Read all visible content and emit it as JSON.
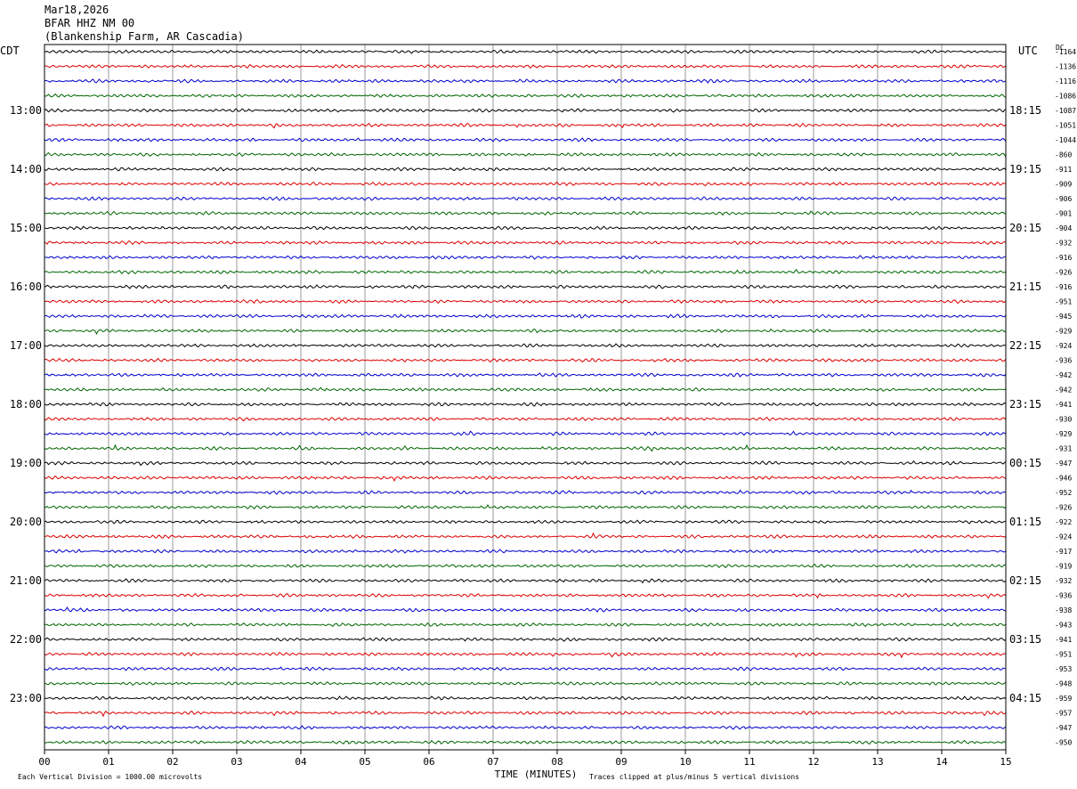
{
  "header": {
    "date": "Mar18,2026",
    "channel": "BFAR HHZ NM 00",
    "station": "(Blankenship Farm, AR Cascadia)"
  },
  "left_tz": "CDT",
  "right_tz": "UTC",
  "dc_label": "DC",
  "footer": {
    "scale_note": "Each Vertical Division = 1000.00 microvolts",
    "xlabel": "TIME (MINUTES)",
    "clip_note": "Traces clipped at plus/minus 5 vertical divisions"
  },
  "colors": {
    "trace_cycle": [
      "#000000",
      "#dd0000",
      "#0000cc",
      "#006600"
    ],
    "grid": "#999999",
    "frame": "#000000"
  },
  "chart_data": {
    "type": "line",
    "title": "",
    "xlabel": "TIME (MINUTES)",
    "xlim": [
      0,
      15
    ],
    "x_ticks": [
      "00",
      "01",
      "02",
      "03",
      "04",
      "05",
      "06",
      "07",
      "08",
      "09",
      "10",
      "11",
      "12",
      "13",
      "14",
      "15"
    ],
    "rows_per_hour": 4,
    "row_count": 48,
    "left_hour_labels": [
      "13:00",
      "14:00",
      "15:00",
      "16:00",
      "17:00",
      "18:00",
      "19:00",
      "20:00",
      "21:00",
      "22:00",
      "23:00"
    ],
    "right_hour_labels": [
      "18:15",
      "19:15",
      "20:15",
      "21:15",
      "22:15",
      "23:15",
      "00:15",
      "01:15",
      "02:15",
      "03:15",
      "04:15"
    ],
    "hour_label_first_row": 4,
    "dc_offsets": [
      -1164,
      -1136,
      -1116,
      -1086,
      -1087,
      -1051,
      -1044,
      -860,
      -911,
      -909,
      -906,
      -901,
      -904,
      -932,
      -916,
      -926,
      -916,
      -951,
      -945,
      -929,
      -924,
      -936,
      -942,
      -942,
      -941,
      -930,
      -929,
      -931,
      -947,
      -946,
      -952,
      -926,
      -922,
      -924,
      -917,
      -919,
      -932,
      -936,
      -938,
      -943,
      -941,
      -951,
      -953,
      -948,
      -959,
      -957,
      -947,
      -950
    ],
    "traces": "continuous seismic noise, 48 rows of 15 minutes each"
  }
}
